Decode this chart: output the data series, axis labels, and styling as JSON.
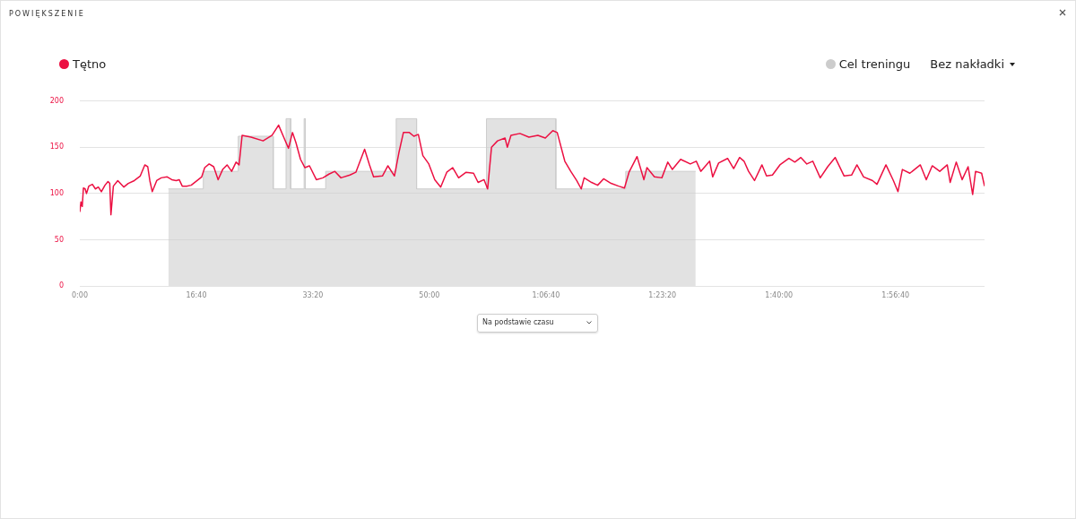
{
  "chart_data": {
    "type": "line",
    "title": "POWIĘKSZENIE",
    "annotations": [
      "Bez nakładki",
      "Na podstawie czasu"
    ],
    "xlim": [
      0,
      7764
    ],
    "xticks": [
      {
        "value": 0,
        "label": "0:00"
      },
      {
        "value": 1000,
        "label": "16:40"
      },
      {
        "value": 2000,
        "label": "33:20"
      },
      {
        "value": 3000,
        "label": "50:00"
      },
      {
        "value": 4000,
        "label": "1:06:40"
      },
      {
        "value": 5000,
        "label": "1:23:20"
      },
      {
        "value": 6000,
        "label": "1:40:00"
      },
      {
        "value": 7000,
        "label": "1:56:40"
      }
    ],
    "ylim": [
      0,
      200
    ],
    "yticks": [
      0,
      50,
      100,
      150,
      200
    ],
    "grid": "y",
    "legend": "top",
    "marker": "none",
    "series": [
      {
        "name": "Tętno",
        "color": "#ec1042",
        "x": [
          0,
          10,
          21,
          31,
          46,
          57,
          77,
          108,
          134,
          159,
          185,
          216,
          242,
          257,
          267,
          288,
          326,
          378,
          416,
          468,
          519,
          558,
          583,
          601,
          622,
          660,
          699,
          750,
          789,
          827,
          853,
          879,
          917,
          956,
          1007,
          1046,
          1072,
          1110,
          1149,
          1187,
          1226,
          1264,
          1303,
          1341,
          1367,
          1393,
          1470,
          1573,
          1650,
          1706,
          1753,
          1791,
          1825,
          1855,
          1894,
          1932,
          1971,
          2030,
          2087,
          2138,
          2189,
          2241,
          2318,
          2369,
          2444,
          2486,
          2521,
          2597,
          2644,
          2700,
          2738,
          2777,
          2828,
          2867,
          2905,
          2944,
          2995,
          3046,
          3097,
          3149,
          3200,
          3251,
          3315,
          3379,
          3418,
          3469,
          3500,
          3533,
          3585,
          3649,
          3669,
          3700,
          3777,
          3854,
          3931,
          3995,
          4059,
          4097,
          4162,
          4213,
          4264,
          4303,
          4328,
          4392,
          4444,
          4495,
          4559,
          4623,
          4674,
          4713,
          4782,
          4841,
          4867,
          4931,
          4995,
          5046,
          5085,
          5156,
          5239,
          5290,
          5329,
          5405,
          5431,
          5482,
          5559,
          5611,
          5662,
          5700,
          5739,
          5790,
          5854,
          5893,
          5944,
          6008,
          6085,
          6136,
          6188,
          6239,
          6290,
          6354,
          6418,
          6482,
          6559,
          6623,
          6669,
          6726,
          6803,
          6841,
          6918,
          6982,
          7021,
          7059,
          7123,
          7213,
          7264,
          7315,
          7380,
          7444,
          7469,
          7521,
          7572,
          7623,
          7662,
          7687,
          7739,
          7764
        ],
        "values": [
          80,
          91,
          86,
          106,
          105,
          100,
          108,
          110,
          105,
          107,
          102,
          109,
          113,
          111,
          77,
          108,
          114,
          107,
          111,
          114,
          119,
          131,
          129,
          114,
          102,
          114,
          117,
          118,
          115,
          114,
          115,
          108,
          108,
          109,
          114,
          118,
          128,
          132,
          129,
          115,
          126,
          131,
          124,
          134,
          131,
          163,
          161,
          157,
          163,
          174,
          160,
          149,
          166,
          155,
          137,
          128,
          130,
          115,
          117,
          121,
          124,
          117,
          120,
          123,
          148,
          131,
          118,
          119,
          130,
          119,
          144,
          166,
          166,
          162,
          164,
          141,
          132,
          115,
          107,
          123,
          128,
          117,
          123,
          122,
          112,
          115,
          105,
          150,
          157,
          160,
          150,
          163,
          165,
          161,
          163,
          160,
          168,
          166,
          135,
          124,
          114,
          105,
          117,
          112,
          109,
          116,
          111,
          108,
          106,
          123,
          140,
          115,
          128,
          118,
          117,
          134,
          126,
          137,
          132,
          135,
          124,
          135,
          118,
          133,
          138,
          127,
          139,
          135,
          124,
          114,
          131,
          119,
          120,
          131,
          138,
          134,
          139,
          132,
          135,
          117,
          129,
          139,
          119,
          120,
          131,
          118,
          114,
          110,
          131,
          114,
          102,
          126,
          122,
          131,
          115,
          130,
          124,
          131,
          112,
          134,
          115,
          129,
          99,
          124,
          122,
          108
        ]
      },
      {
        "name": "Cel treningu",
        "color": "#cccccc",
        "type": "area",
        "x": [
          760,
          1060,
          1060,
          1360,
          1360,
          1660,
          1660,
          1770,
          1770,
          1810,
          1810,
          1925,
          1925,
          1935,
          1935,
          2110,
          2110,
          2715,
          2715,
          2890,
          2890,
          3490,
          3490,
          4085,
          4085,
          4685,
          4685,
          5285
        ],
        "values": [
          105,
          105,
          124,
          124,
          162,
          162,
          105,
          105,
          181,
          181,
          105,
          105,
          181,
          181,
          105,
          105,
          124,
          124,
          181,
          181,
          105,
          105,
          181,
          181,
          105,
          105,
          124,
          124
        ]
      }
    ]
  }
}
